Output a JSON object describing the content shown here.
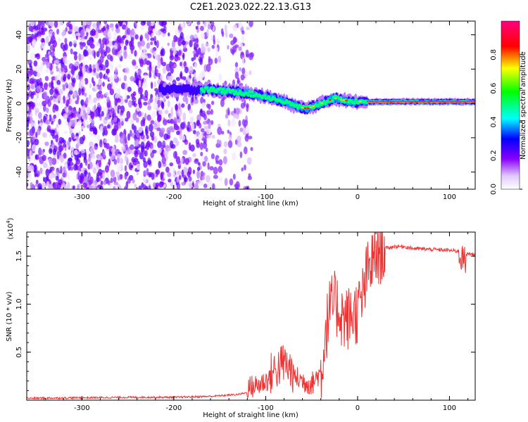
{
  "figure_title": "C2E1.2023.022.22.13.G13",
  "chart_data": [
    {
      "type": "heatmap",
      "title": "C2E1.2023.022.22.13.G13",
      "xlabel": "Height of straight line (km)",
      "ylabel": "Frequency (Hz)",
      "xlim": [
        -360,
        128
      ],
      "ylim": [
        -50,
        48
      ],
      "xticks": [
        -300,
        -200,
        -100,
        0,
        100
      ],
      "yticks": [
        -40,
        -20,
        0,
        20,
        40
      ],
      "colorbar": {
        "label": "Normalized spectral amplitude",
        "range": [
          0,
          1
        ],
        "ticks": [
          0.0,
          0.2,
          0.4,
          0.6,
          0.8
        ],
        "tick_labels": [
          "0.0",
          "0.2",
          "0.4",
          "0.6",
          "0.8"
        ],
        "colormap": [
          "#ffffff",
          "#7a00ff",
          "#0000ff",
          "#00ffff",
          "#00ff00",
          "#ffff00",
          "#ff0000",
          "#ff0080"
        ]
      },
      "ridge": {
        "description_values_only": true,
        "x": [
          -215,
          -200,
          -180,
          -160,
          -140,
          -120,
          -100,
          -80,
          -65,
          -55,
          -45,
          -35,
          -25,
          -15,
          -5,
          5,
          20,
          40,
          60,
          80,
          100,
          128
        ],
        "frequency": [
          8,
          8,
          8,
          8,
          7,
          6,
          4,
          1,
          -2,
          -3,
          -1,
          1,
          3,
          2,
          1,
          1,
          1,
          1,
          1,
          1,
          1,
          1
        ]
      },
      "grid": false
    },
    {
      "type": "line",
      "xlabel": "Height of straight line (km)",
      "ylabel": "SNR (10 * v/v)",
      "scale_label": "(x10",
      "scale_exponent": "4",
      "scale_suffix": ")",
      "xlim": [
        -360,
        128
      ],
      "ylim": [
        0,
        1.75
      ],
      "xticks": [
        -300,
        -200,
        -100,
        0,
        100
      ],
      "yticks": [
        0.5,
        1.0,
        1.5
      ],
      "ytick_labels": [
        "0.5",
        "1.0",
        "1.5"
      ],
      "series": [
        {
          "color": "#ee3333",
          "x": [
            -360,
            -300,
            -250,
            -200,
            -160,
            -130,
            -110,
            -100,
            -90,
            -80,
            -70,
            -60,
            -50,
            -40,
            -35,
            -30,
            -25,
            -20,
            -15,
            -10,
            -5,
            0,
            5,
            10,
            15,
            20,
            25,
            30,
            35,
            40,
            50,
            60,
            80,
            100,
            110,
            115,
            120,
            128
          ],
          "y": [
            0.02,
            0.025,
            0.03,
            0.03,
            0.04,
            0.06,
            0.1,
            0.15,
            0.22,
            0.3,
            0.2,
            0.15,
            0.12,
            0.25,
            0.7,
            0.95,
            1.0,
            0.95,
            0.85,
            0.85,
            0.9,
            0.92,
            1.05,
            1.3,
            1.42,
            1.5,
            1.55,
            1.58,
            1.59,
            1.6,
            1.6,
            1.58,
            1.57,
            1.56,
            1.55,
            1.45,
            1.53,
            1.51
          ]
        }
      ],
      "grid": false
    }
  ]
}
